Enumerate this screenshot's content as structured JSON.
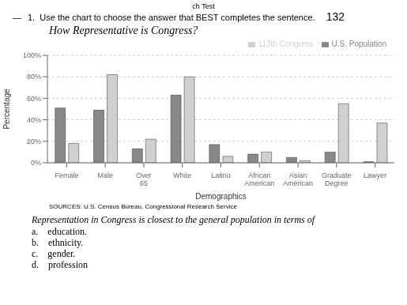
{
  "chart_data": {
    "type": "bar",
    "title": "How Representative is Congress?",
    "categories": [
      "Female",
      "Male",
      "Over\n65",
      "White",
      "Latino",
      "African\nAmerican",
      "Asian\nAmerican",
      "Graduate\nDegree",
      "Lawyer"
    ],
    "series": [
      {
        "name": "U.S. Population",
        "color": "#888888",
        "values": [
          51,
          49,
          13,
          63,
          17,
          8,
          5,
          10,
          1
        ]
      },
      {
        "name": "113th Congress",
        "color": "#d0d0d0",
        "values": [
          18,
          82,
          22,
          80,
          6,
          10,
          2,
          55,
          37
        ]
      }
    ],
    "x_label": "Demographics",
    "y_label": "Percentage",
    "ylim": [
      0,
      100
    ],
    "yticks": [
      {
        "value": 0,
        "label": "0%"
      },
      {
        "value": 20,
        "label": "20%"
      },
      {
        "value": 40,
        "label": "40%"
      },
      {
        "value": 60,
        "label": "60%"
      },
      {
        "value": 80,
        "label": "80%"
      },
      {
        "value": 100,
        "label": "100%"
      }
    ],
    "grid": true,
    "legend": "upper right",
    "annotations": [
      "ch Test",
      "—",
      "1.  Use the chart to choose the answer that BEST completes the sentence.",
      "132",
      "SOURCES: U.S. Census Bureau, Congressional Research Service",
      "Representation in Congress is closest to the general population in terms of",
      "a.    education.",
      "b.    ethnicity.",
      "c.    gender.",
      "d.    profession"
    ]
  }
}
